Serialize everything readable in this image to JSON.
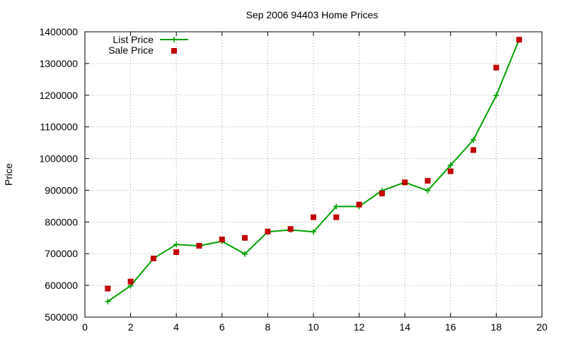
{
  "chart_data": {
    "type": "line",
    "title": "Sep 2006 94403 Home Prices",
    "xlabel": "",
    "ylabel": "Price",
    "xlim": [
      0,
      20
    ],
    "ylim": [
      500000,
      1400000
    ],
    "grid": true,
    "legend_position": "top-left",
    "x_ticks": [
      "0",
      "2",
      "4",
      "6",
      "8",
      "10",
      "12",
      "14",
      "16",
      "18",
      "20"
    ],
    "y_ticks": [
      "500000",
      "600000",
      "700000",
      "800000",
      "900000",
      "1000000",
      "1100000",
      "1200000",
      "1300000",
      "1400000"
    ],
    "x_tick_values": [
      0,
      2,
      4,
      6,
      8,
      10,
      12,
      14,
      16,
      18,
      20
    ],
    "y_tick_values": [
      500000,
      600000,
      700000,
      800000,
      900000,
      1000000,
      1100000,
      1200000,
      1300000,
      1400000
    ],
    "series": [
      {
        "name": "List Price",
        "style": "line-plus",
        "color": "#00a000",
        "x": [
          1,
          2,
          3,
          4,
          5,
          6,
          7,
          8,
          9,
          10,
          11,
          12,
          13,
          14,
          15,
          16,
          17,
          18,
          19
        ],
        "y": [
          549000,
          599000,
          685000,
          729000,
          725000,
          739000,
          699000,
          769000,
          775000,
          769000,
          849000,
          849000,
          899000,
          925000,
          899000,
          979000,
          1059000,
          1199000,
          1375000
        ]
      },
      {
        "name": "Sale Price",
        "style": "square-points",
        "color": "#c00000",
        "x": [
          1,
          2,
          3,
          4,
          5,
          6,
          7,
          8,
          9,
          10,
          11,
          12,
          13,
          14,
          15,
          16,
          17,
          18,
          19
        ],
        "y": [
          590000,
          612000,
          685000,
          705000,
          725000,
          745000,
          750000,
          770000,
          778000,
          815000,
          815000,
          855000,
          890000,
          925000,
          930000,
          960000,
          1027000,
          1287000,
          1375000
        ]
      }
    ]
  }
}
